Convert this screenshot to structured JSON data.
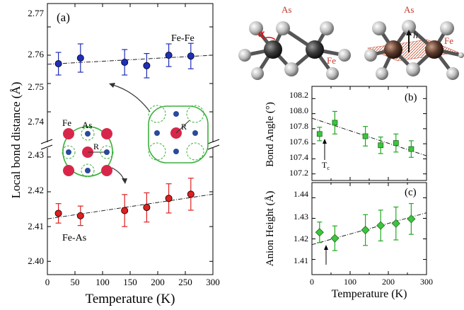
{
  "chart_data": [
    {
      "panel": "a",
      "panel_label": "(a)",
      "type": "scatter",
      "xlabel": "Temperature (K)",
      "ylabel": "Local bond distance (Å)",
      "xlim": [
        0,
        300
      ],
      "x_ticks": [
        "0",
        "50",
        "100",
        "150",
        "200",
        "250",
        "300"
      ],
      "y_ticks_upper": [
        "2.74",
        "2.75",
        "2.76",
        "2.77"
      ],
      "y_ticks_lower": [
        "2.40",
        "2.41",
        "2.42",
        "2.43"
      ],
      "ylim_upper": [
        2.735,
        2.775
      ],
      "ylim_lower": [
        2.397,
        2.432
      ],
      "axis_break": true,
      "series": [
        {
          "name": "Fe-Fe",
          "color": "#1f2fb8",
          "x": [
            20,
            60,
            140,
            180,
            220,
            260
          ],
          "y": [
            2.757,
            2.759,
            2.7575,
            2.7563,
            2.76,
            2.7597
          ],
          "err": [
            0.004,
            0.005,
            0.0045,
            0.0043,
            0.004,
            0.0045
          ],
          "fit": [
            [
              0,
              2.7568
            ],
            [
              300,
              2.76
            ]
          ]
        },
        {
          "name": "Fe-As",
          "color": "#e01f1f",
          "x": [
            20,
            60,
            140,
            180,
            220,
            260
          ],
          "y": [
            2.4138,
            2.4131,
            2.4146,
            2.4155,
            2.4181,
            2.4193
          ],
          "err": [
            0.0028,
            0.0028,
            0.0046,
            0.0042,
            0.0042,
            0.0046
          ],
          "fit": [
            [
              0,
              2.4122
            ],
            [
              300,
              2.4193
            ]
          ]
        }
      ],
      "inset_labels": {
        "fe": "Fe",
        "as": "As",
        "r_left": "R",
        "r_right": "R"
      }
    },
    {
      "panel": "b",
      "panel_label": "(b)",
      "type": "scatter",
      "ylabel": "Bond Angle (°)",
      "xlim": [
        0,
        300
      ],
      "ylim": [
        107.15,
        108.25
      ],
      "y_ticks": [
        "108.2",
        "108.0",
        "107.8",
        "107.6",
        "107.4",
        "107.2"
      ],
      "annotation": "T",
      "annotation_sub": "c",
      "series": [
        {
          "color": "#22a822",
          "x": [
            20,
            60,
            140,
            180,
            220,
            260
          ],
          "y": [
            107.73,
            107.88,
            107.7,
            107.58,
            107.61,
            107.53
          ],
          "err": [
            0.09,
            0.15,
            0.13,
            0.11,
            0.12,
            0.11
          ],
          "fit": [
            [
              0,
              107.94
            ],
            [
              300,
              107.44
            ]
          ]
        }
      ]
    },
    {
      "panel": "c",
      "panel_label": "(c)",
      "type": "scatter",
      "xlabel": "Temperature (K)",
      "ylabel": "Anion Height (Å)",
      "xlim": [
        0,
        300
      ],
      "ylim": [
        1.404,
        1.446
      ],
      "x_ticks": [
        "0",
        "100",
        "200",
        "300"
      ],
      "y_ticks": [
        "1.44",
        "1.43",
        "1.42",
        "1.41"
      ],
      "series": [
        {
          "color": "#22a822",
          "x": [
            20,
            60,
            140,
            180,
            220,
            260
          ],
          "y": [
            1.4232,
            1.4203,
            1.4243,
            1.4265,
            1.4275,
            1.4297
          ],
          "err": [
            0.005,
            0.006,
            0.0075,
            0.0075,
            0.008,
            0.0075
          ],
          "fit": [
            [
              0,
              1.4172
            ],
            [
              300,
              1.4327
            ]
          ]
        }
      ]
    }
  ],
  "structure_labels": {
    "left_as": "As",
    "left_fe": "Fe",
    "left_alpha": "α",
    "right_as": "As",
    "right_fe": "Fe",
    "right_h": "h"
  }
}
